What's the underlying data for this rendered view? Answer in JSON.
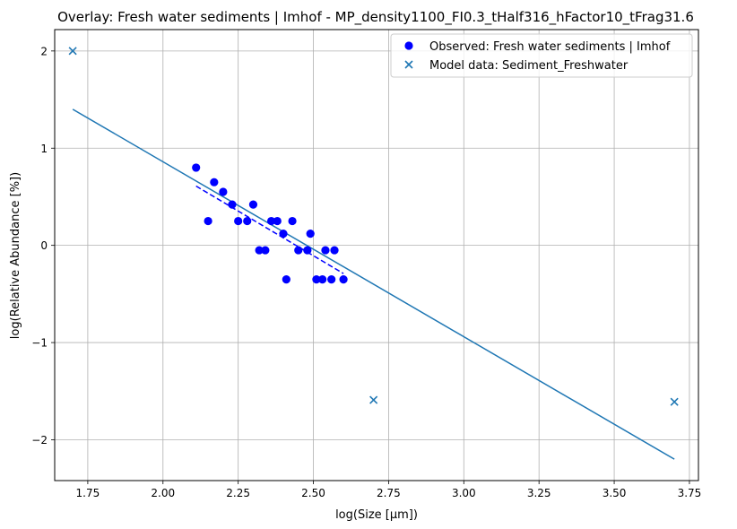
{
  "chart_data": {
    "type": "scatter",
    "title": "Overlay: Fresh water sediments | Imhof - MP_density1100_FI0.3_tHalf316_hFactor10_tFrag31.6",
    "xlabel": "log(Size [µm])",
    "ylabel": "log(Relative Abundance [%])",
    "xlim": [
      1.64,
      3.78
    ],
    "ylim": [
      -2.42,
      2.22
    ],
    "xticks": [
      1.75,
      2.0,
      2.25,
      2.5,
      2.75,
      3.0,
      3.25,
      3.5,
      3.75
    ],
    "xtick_labels": [
      "1.75",
      "2.00",
      "2.25",
      "2.50",
      "2.75",
      "3.00",
      "3.25",
      "3.50",
      "3.75"
    ],
    "yticks": [
      2,
      1,
      0,
      -1,
      -2
    ],
    "ytick_labels": [
      "2",
      "1",
      "0",
      "−1",
      "−2"
    ],
    "grid": true,
    "legend_position": "top-right",
    "colors": {
      "observed": "#0000ff",
      "model": "#1f77b4",
      "grid": "#b0b0b0"
    },
    "series": [
      {
        "name": "Observed: Fresh water sediments | Imhof",
        "kind": "scatter",
        "marker": "circle",
        "color": "#0000ff",
        "points": [
          [
            2.11,
            0.8
          ],
          [
            2.15,
            0.25
          ],
          [
            2.17,
            0.65
          ],
          [
            2.2,
            0.55
          ],
          [
            2.23,
            0.42
          ],
          [
            2.25,
            0.25
          ],
          [
            2.28,
            0.25
          ],
          [
            2.3,
            0.42
          ],
          [
            2.32,
            -0.05
          ],
          [
            2.34,
            -0.05
          ],
          [
            2.36,
            0.25
          ],
          [
            2.38,
            0.25
          ],
          [
            2.4,
            0.12
          ],
          [
            2.41,
            -0.35
          ],
          [
            2.43,
            0.25
          ],
          [
            2.45,
            -0.05
          ],
          [
            2.48,
            -0.05
          ],
          [
            2.49,
            0.12
          ],
          [
            2.51,
            -0.35
          ],
          [
            2.53,
            -0.35
          ],
          [
            2.54,
            -0.05
          ],
          [
            2.56,
            -0.35
          ],
          [
            2.57,
            -0.05
          ],
          [
            2.6,
            -0.35
          ]
        ]
      },
      {
        "name": "Model data: Sediment_Freshwater",
        "kind": "scatter",
        "marker": "x",
        "color": "#1f77b4",
        "points": [
          [
            1.7,
            2.0
          ],
          [
            2.7,
            -1.59
          ],
          [
            3.7,
            -1.61
          ]
        ]
      },
      {
        "kind": "line",
        "style": "dashed",
        "color": "#0000ff",
        "points": [
          [
            2.11,
            0.61
          ],
          [
            2.6,
            -0.29
          ]
        ]
      },
      {
        "kind": "line",
        "style": "solid",
        "color": "#1f77b4",
        "points": [
          [
            1.7,
            1.4
          ],
          [
            3.7,
            -2.2
          ]
        ]
      }
    ]
  }
}
